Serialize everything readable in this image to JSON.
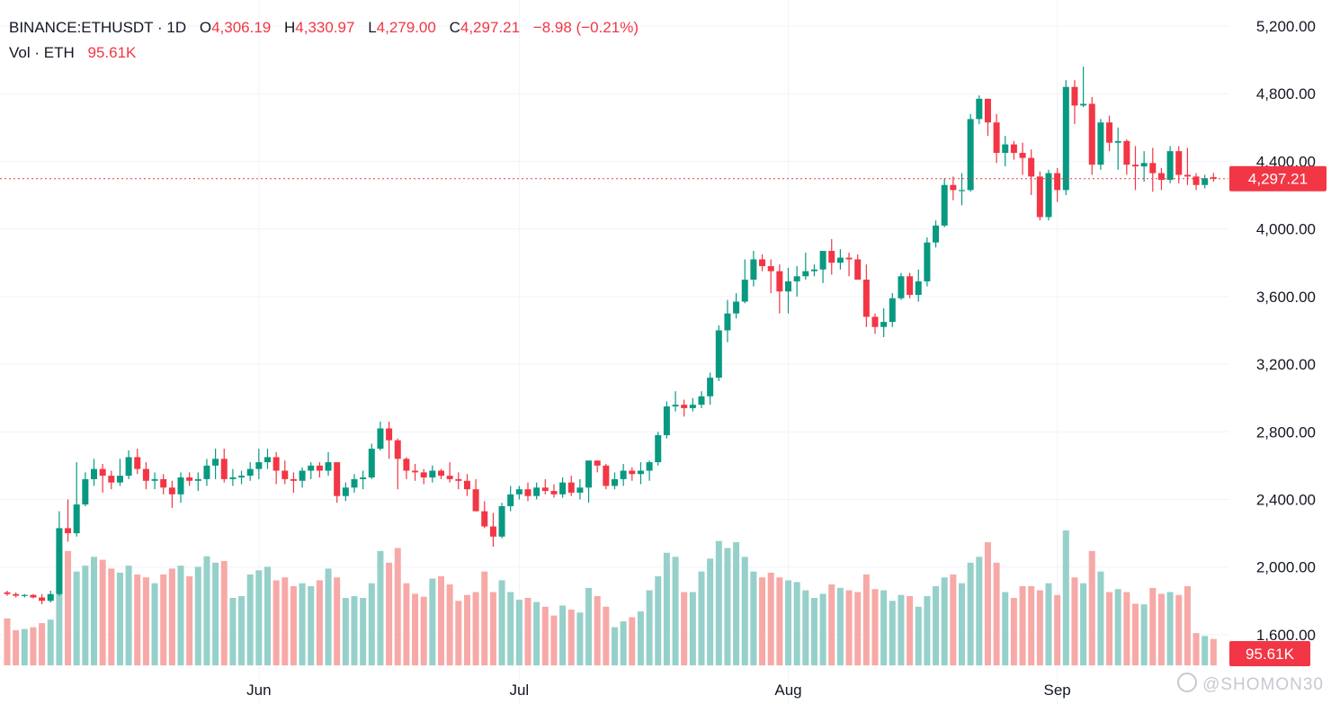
{
  "header": {
    "symbol": "BINANCE:ETHUSDT · 1D",
    "o_label": "O",
    "o_value": "4,306.19",
    "h_label": "H",
    "h_value": "4,330.97",
    "l_label": "L",
    "l_value": "4,279.00",
    "c_label": "C",
    "c_value": "4,297.21",
    "change": "−8.98 (−0.21%)",
    "vol_label": "Vol · ETH",
    "vol_value": "95.61K"
  },
  "watermark": "@SHOMON30",
  "colors": {
    "up": "#089981",
    "down": "#f23645",
    "vol_up": "#96d0ca",
    "vol_down": "#f7a9a7",
    "grid": "#f0f3fa",
    "axis_text": "#131722"
  },
  "chart_data": {
    "type": "candlestick",
    "symbol": "BINANCE:ETHUSDT",
    "interval": "1D",
    "y_ticks": [
      "5,200.00",
      "4,800.00",
      "4,400.00",
      "4,000.00",
      "3,600.00",
      "3,200.00",
      "2,800.00",
      "2,400.00",
      "2,000.00",
      "1,600.00"
    ],
    "ylim": [
      1520,
      5380
    ],
    "x_labels": [
      {
        "label": "Jun",
        "index": 29
      },
      {
        "label": "Jul",
        "index": 59
      },
      {
        "label": "Aug",
        "index": 90
      },
      {
        "label": "Sep",
        "index": 121
      }
    ],
    "last_price": 4297.21,
    "last_price_label": "4,297.21",
    "last_volume_label": "95.61K",
    "grid": true,
    "volume_scale_max": 230,
    "candles": [
      [
        1850,
        1860,
        1830,
        1840,
        80
      ],
      [
        1840,
        1850,
        1820,
        1830,
        60
      ],
      [
        1830,
        1840,
        1820,
        1835,
        62
      ],
      [
        1835,
        1840,
        1815,
        1820,
        65
      ],
      [
        1820,
        1840,
        1780,
        1800,
        72
      ],
      [
        1800,
        1860,
        1790,
        1840,
        78
      ],
      [
        1840,
        2330,
        1830,
        2230,
        200
      ],
      [
        2230,
        2400,
        2150,
        2200,
        195
      ],
      [
        2200,
        2620,
        2180,
        2370,
        160
      ],
      [
        2370,
        2560,
        2360,
        2520,
        170
      ],
      [
        2520,
        2640,
        2480,
        2580,
        185
      ],
      [
        2580,
        2610,
        2440,
        2540,
        180
      ],
      [
        2540,
        2570,
        2460,
        2500,
        165
      ],
      [
        2500,
        2640,
        2480,
        2540,
        158
      ],
      [
        2540,
        2690,
        2520,
        2650,
        170
      ],
      [
        2650,
        2700,
        2550,
        2580,
        155
      ],
      [
        2580,
        2620,
        2460,
        2510,
        150
      ],
      [
        2510,
        2560,
        2460,
        2520,
        140
      ],
      [
        2520,
        2550,
        2430,
        2470,
        155
      ],
      [
        2470,
        2510,
        2350,
        2430,
        165
      ],
      [
        2430,
        2560,
        2380,
        2530,
        170
      ],
      [
        2530,
        2560,
        2480,
        2510,
        152
      ],
      [
        2510,
        2560,
        2450,
        2520,
        168
      ],
      [
        2520,
        2640,
        2480,
        2600,
        186
      ],
      [
        2600,
        2700,
        2520,
        2640,
        175
      ],
      [
        2640,
        2700,
        2500,
        2520,
        178
      ],
      [
        2520,
        2580,
        2480,
        2530,
        115
      ],
      [
        2530,
        2570,
        2490,
        2540,
        118
      ],
      [
        2540,
        2620,
        2510,
        2580,
        155
      ],
      [
        2580,
        2700,
        2520,
        2620,
        162
      ],
      [
        2620,
        2700,
        2580,
        2650,
        168
      ],
      [
        2650,
        2680,
        2490,
        2570,
        145
      ],
      [
        2570,
        2630,
        2490,
        2520,
        150
      ],
      [
        2520,
        2560,
        2440,
        2510,
        135
      ],
      [
        2510,
        2590,
        2470,
        2570,
        140
      ],
      [
        2570,
        2620,
        2520,
        2600,
        135
      ],
      [
        2600,
        2620,
        2530,
        2570,
        145
      ],
      [
        2570,
        2680,
        2540,
        2620,
        165
      ],
      [
        2620,
        2620,
        2380,
        2420,
        150
      ],
      [
        2420,
        2500,
        2390,
        2470,
        115
      ],
      [
        2470,
        2550,
        2440,
        2520,
        118
      ],
      [
        2520,
        2570,
        2460,
        2530,
        115
      ],
      [
        2530,
        2730,
        2520,
        2700,
        140
      ],
      [
        2700,
        2860,
        2690,
        2820,
        195
      ],
      [
        2820,
        2860,
        2640,
        2750,
        175
      ],
      [
        2750,
        2760,
        2460,
        2640,
        200
      ],
      [
        2640,
        2650,
        2520,
        2570,
        140
      ],
      [
        2570,
        2610,
        2510,
        2560,
        122
      ],
      [
        2560,
        2580,
        2490,
        2530,
        117
      ],
      [
        2530,
        2600,
        2500,
        2570,
        148
      ],
      [
        2570,
        2580,
        2520,
        2540,
        152
      ],
      [
        2540,
        2620,
        2500,
        2520,
        138
      ],
      [
        2520,
        2560,
        2460,
        2510,
        110
      ],
      [
        2510,
        2550,
        2420,
        2460,
        120
      ],
      [
        2460,
        2520,
        2330,
        2330,
        125
      ],
      [
        2330,
        2390,
        2230,
        2240,
        160
      ],
      [
        2240,
        2320,
        2120,
        2180,
        125
      ],
      [
        2180,
        2380,
        2170,
        2360,
        145
      ],
      [
        2360,
        2480,
        2330,
        2430,
        125
      ],
      [
        2430,
        2480,
        2400,
        2460,
        112
      ],
      [
        2460,
        2500,
        2390,
        2420,
        115
      ],
      [
        2420,
        2500,
        2400,
        2470,
        108
      ],
      [
        2470,
        2520,
        2430,
        2450,
        100
      ],
      [
        2450,
        2490,
        2410,
        2430,
        85
      ],
      [
        2430,
        2530,
        2410,
        2500,
        102
      ],
      [
        2500,
        2540,
        2420,
        2440,
        95
      ],
      [
        2440,
        2520,
        2400,
        2470,
        90
      ],
      [
        2470,
        2630,
        2380,
        2630,
        132
      ],
      [
        2630,
        2630,
        2560,
        2600,
        118
      ],
      [
        2600,
        2610,
        2460,
        2480,
        100
      ],
      [
        2480,
        2560,
        2460,
        2520,
        65
      ],
      [
        2520,
        2610,
        2480,
        2570,
        75
      ],
      [
        2570,
        2590,
        2510,
        2550,
        82
      ],
      [
        2550,
        2620,
        2490,
        2570,
        92
      ],
      [
        2570,
        2630,
        2510,
        2620,
        128
      ],
      [
        2620,
        2800,
        2600,
        2780,
        152
      ],
      [
        2780,
        2980,
        2760,
        2950,
        192
      ],
      [
        2950,
        3040,
        2920,
        2960,
        185
      ],
      [
        2960,
        2990,
        2890,
        2940,
        125
      ],
      [
        2940,
        3000,
        2920,
        2960,
        125
      ],
      [
        2960,
        3040,
        2940,
        3010,
        160
      ],
      [
        3010,
        3150,
        2960,
        3120,
        182
      ],
      [
        3120,
        3430,
        3100,
        3400,
        212
      ],
      [
        3400,
        3580,
        3330,
        3500,
        200
      ],
      [
        3500,
        3620,
        3470,
        3570,
        210
      ],
      [
        3570,
        3820,
        3560,
        3700,
        185
      ],
      [
        3700,
        3870,
        3660,
        3820,
        160
      ],
      [
        3820,
        3850,
        3750,
        3780,
        150
      ],
      [
        3780,
        3820,
        3620,
        3750,
        158
      ],
      [
        3750,
        3790,
        3500,
        3630,
        150
      ],
      [
        3630,
        3770,
        3500,
        3690,
        145
      ],
      [
        3690,
        3780,
        3600,
        3720,
        142
      ],
      [
        3720,
        3860,
        3700,
        3750,
        128
      ],
      [
        3750,
        3790,
        3720,
        3760,
        115
      ],
      [
        3760,
        3870,
        3680,
        3870,
        122
      ],
      [
        3870,
        3940,
        3730,
        3800,
        138
      ],
      [
        3800,
        3880,
        3760,
        3830,
        132
      ],
      [
        3830,
        3860,
        3720,
        3820,
        128
      ],
      [
        3820,
        3850,
        3700,
        3700,
        125
      ],
      [
        3700,
        3790,
        3420,
        3480,
        155
      ],
      [
        3480,
        3500,
        3380,
        3420,
        130
      ],
      [
        3420,
        3530,
        3360,
        3450,
        128
      ],
      [
        3450,
        3620,
        3420,
        3590,
        110
      ],
      [
        3590,
        3740,
        3580,
        3720,
        120
      ],
      [
        3720,
        3740,
        3590,
        3610,
        118
      ],
      [
        3610,
        3760,
        3570,
        3690,
        100
      ],
      [
        3690,
        3950,
        3660,
        3920,
        118
      ],
      [
        3920,
        4050,
        3890,
        4020,
        135
      ],
      [
        4020,
        4300,
        4010,
        4260,
        150
      ],
      [
        4260,
        4310,
        4170,
        4230,
        155
      ],
      [
        4230,
        4330,
        4140,
        4230,
        140
      ],
      [
        4230,
        4680,
        4220,
        4650,
        175
      ],
      [
        4650,
        4790,
        4620,
        4770,
        185
      ],
      [
        4770,
        4770,
        4550,
        4630,
        210
      ],
      [
        4630,
        4680,
        4390,
        4450,
        175
      ],
      [
        4450,
        4550,
        4370,
        4500,
        125
      ],
      [
        4500,
        4520,
        4410,
        4450,
        115
      ],
      [
        4450,
        4510,
        4320,
        4420,
        135
      ],
      [
        4420,
        4470,
        4200,
        4310,
        135
      ],
      [
        4310,
        4340,
        4050,
        4070,
        128
      ],
      [
        4070,
        4350,
        4050,
        4330,
        140
      ],
      [
        4330,
        4360,
        4160,
        4230,
        120
      ],
      [
        4230,
        4880,
        4200,
        4840,
        230
      ],
      [
        4840,
        4880,
        4620,
        4730,
        150
      ],
      [
        4730,
        4960,
        4720,
        4740,
        140
      ],
      [
        4740,
        4780,
        4320,
        4380,
        195
      ],
      [
        4380,
        4650,
        4350,
        4630,
        160
      ],
      [
        4630,
        4670,
        4460,
        4510,
        125
      ],
      [
        4510,
        4600,
        4350,
        4520,
        130
      ],
      [
        4520,
        4530,
        4320,
        4380,
        125
      ],
      [
        4380,
        4490,
        4230,
        4370,
        105
      ],
      [
        4370,
        4460,
        4280,
        4390,
        104
      ],
      [
        4390,
        4480,
        4220,
        4330,
        132
      ],
      [
        4330,
        4360,
        4230,
        4290,
        122
      ],
      [
        4290,
        4490,
        4270,
        4460,
        125
      ],
      [
        4460,
        4490,
        4270,
        4320,
        120
      ],
      [
        4320,
        4480,
        4260,
        4310,
        135
      ],
      [
        4310,
        4330,
        4230,
        4260,
        55
      ],
      [
        4260,
        4320,
        4240,
        4300,
        50
      ],
      [
        4306.19,
        4330.97,
        4279.0,
        4297.21,
        45
      ]
    ]
  }
}
